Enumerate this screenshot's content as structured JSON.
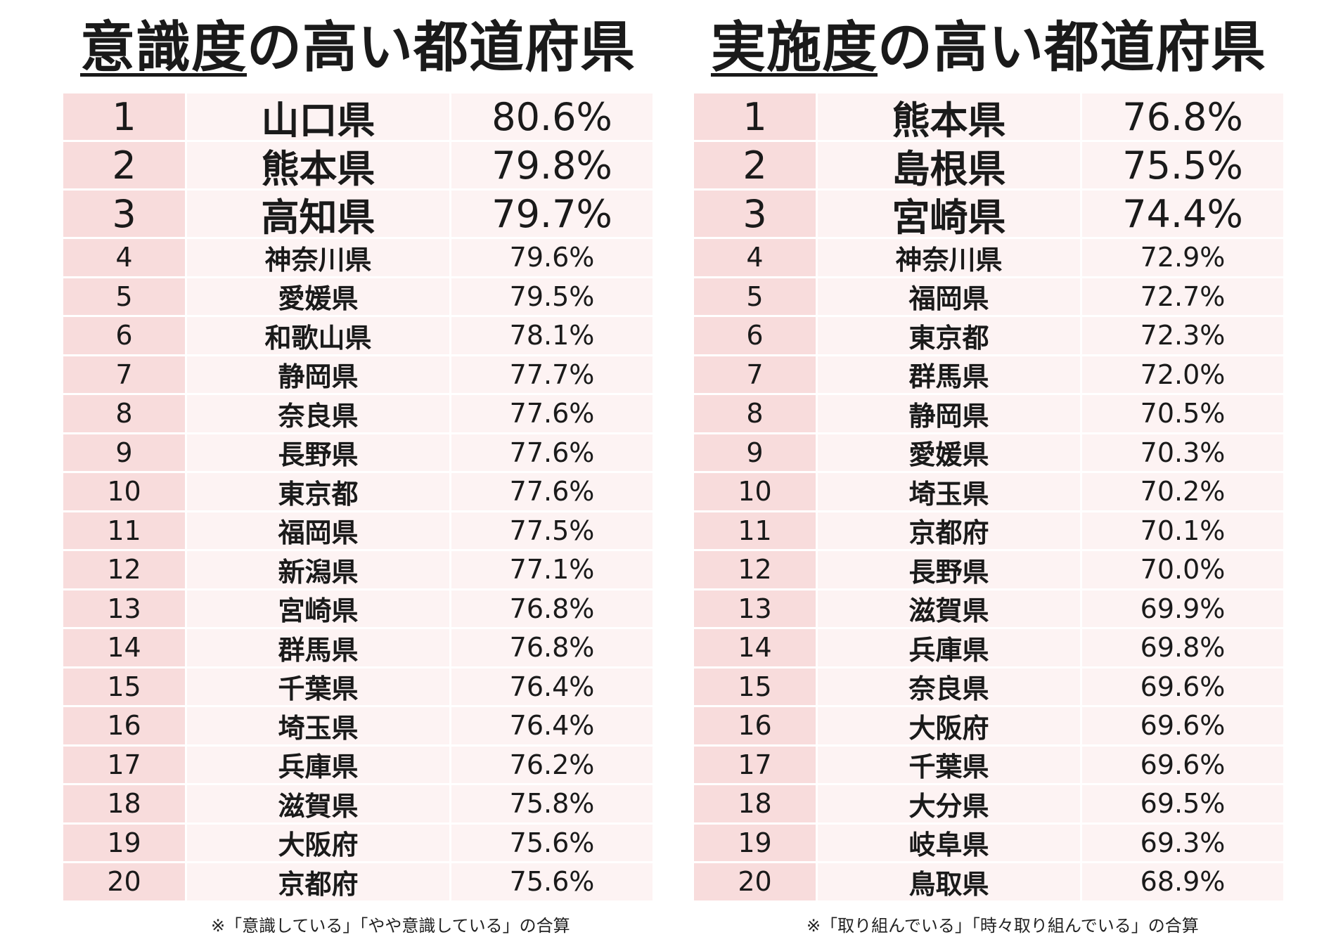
{
  "chart_data": [
    {
      "type": "table",
      "title_underlined": "意識度",
      "title_rest": "の高い都道府県",
      "columns": [
        "rank",
        "prefecture",
        "percent"
      ],
      "rows": [
        {
          "rank": "1",
          "name": "山口県",
          "value": "80.6%"
        },
        {
          "rank": "2",
          "name": "熊本県",
          "value": "79.8%"
        },
        {
          "rank": "3",
          "name": "高知県",
          "value": "79.7%"
        },
        {
          "rank": "4",
          "name": "神奈川県",
          "value": "79.6%"
        },
        {
          "rank": "5",
          "name": "愛媛県",
          "value": "79.5%"
        },
        {
          "rank": "6",
          "name": "和歌山県",
          "value": "78.1%"
        },
        {
          "rank": "7",
          "name": "静岡県",
          "value": "77.7%"
        },
        {
          "rank": "8",
          "name": "奈良県",
          "value": "77.6%"
        },
        {
          "rank": "9",
          "name": "長野県",
          "value": "77.6%"
        },
        {
          "rank": "10",
          "name": "東京都",
          "value": "77.6%"
        },
        {
          "rank": "11",
          "name": "福岡県",
          "value": "77.5%"
        },
        {
          "rank": "12",
          "name": "新潟県",
          "value": "77.1%"
        },
        {
          "rank": "13",
          "name": "宮崎県",
          "value": "76.8%"
        },
        {
          "rank": "14",
          "name": "群馬県",
          "value": "76.8%"
        },
        {
          "rank": "15",
          "name": "千葉県",
          "value": "76.4%"
        },
        {
          "rank": "16",
          "name": "埼玉県",
          "value": "76.4%"
        },
        {
          "rank": "17",
          "name": "兵庫県",
          "value": "76.2%"
        },
        {
          "rank": "18",
          "name": "滋賀県",
          "value": "75.8%"
        },
        {
          "rank": "19",
          "name": "大阪府",
          "value": "75.6%"
        },
        {
          "rank": "20",
          "name": "京都府",
          "value": "75.6%"
        }
      ],
      "note": "※「意識している」「やや意識している」の合算"
    },
    {
      "type": "table",
      "title_underlined": "実施度",
      "title_rest": "の高い都道府県",
      "columns": [
        "rank",
        "prefecture",
        "percent"
      ],
      "rows": [
        {
          "rank": "1",
          "name": "熊本県",
          "value": "76.8%"
        },
        {
          "rank": "2",
          "name": "島根県",
          "value": "75.5%"
        },
        {
          "rank": "3",
          "name": "宮崎県",
          "value": "74.4%"
        },
        {
          "rank": "4",
          "name": "神奈川県",
          "value": "72.9%"
        },
        {
          "rank": "5",
          "name": "福岡県",
          "value": "72.7%"
        },
        {
          "rank": "6",
          "name": "東京都",
          "value": "72.3%"
        },
        {
          "rank": "7",
          "name": "群馬県",
          "value": "72.0%"
        },
        {
          "rank": "8",
          "name": "静岡県",
          "value": "70.5%"
        },
        {
          "rank": "9",
          "name": "愛媛県",
          "value": "70.3%"
        },
        {
          "rank": "10",
          "name": "埼玉県",
          "value": "70.2%"
        },
        {
          "rank": "11",
          "name": "京都府",
          "value": "70.1%"
        },
        {
          "rank": "12",
          "name": "長野県",
          "value": "70.0%"
        },
        {
          "rank": "13",
          "name": "滋賀県",
          "value": "69.9%"
        },
        {
          "rank": "14",
          "name": "兵庫県",
          "value": "69.8%"
        },
        {
          "rank": "15",
          "name": "奈良県",
          "value": "69.6%"
        },
        {
          "rank": "16",
          "name": "大阪府",
          "value": "69.6%"
        },
        {
          "rank": "17",
          "name": "千葉県",
          "value": "69.6%"
        },
        {
          "rank": "18",
          "name": "大分県",
          "value": "69.5%"
        },
        {
          "rank": "19",
          "name": "岐阜県",
          "value": "69.3%"
        },
        {
          "rank": "20",
          "name": "鳥取県",
          "value": "68.9%"
        }
      ],
      "note": "※「取り組んでいる」「時々取り組んでいる」の合算"
    }
  ],
  "colors": {
    "rank_cell": "#f8dcdc",
    "data_cell": "#fdf3f3",
    "text": "#1a1a1a"
  }
}
